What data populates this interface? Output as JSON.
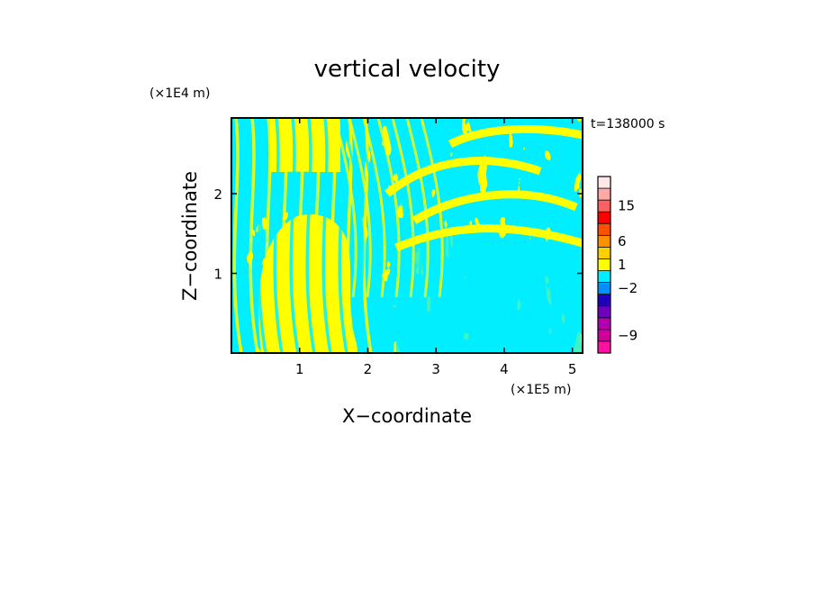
{
  "chart_data": {
    "type": "heatmap",
    "title": "vertical velocity",
    "xlabel": "X−coordinate",
    "ylabel": "Z−coordinate",
    "x_unit": "(×1E5 m)",
    "y_unit": "(×1E4 m)",
    "time_label": "t=138000 s",
    "xlim": [
      0,
      5.15
    ],
    "ylim": [
      0,
      2.95
    ],
    "x_ticks": [
      1,
      2,
      3,
      4,
      5
    ],
    "y_ticks": [
      1,
      2
    ],
    "x_tick_labels": [
      "1",
      "2",
      "3",
      "4",
      "5"
    ],
    "y_tick_labels": [
      "1",
      "2"
    ],
    "colors": {
      "positive": "#ffff00",
      "negative": "#00eeff",
      "frame": "#000000"
    },
    "colorbar": {
      "colors": [
        "#ff10a0",
        "#d0009c",
        "#b000b0",
        "#7000c0",
        "#2000c0",
        "#0090ff",
        "#00eeff",
        "#ffff00",
        "#ffd000",
        "#ff9000",
        "#ff5000",
        "#ff0000",
        "#ff6060",
        "#ffa8a8",
        "#ffe8e8"
      ],
      "tick_labels": [
        "−9",
        "−2",
        "1",
        "6",
        "15"
      ],
      "tick_level_index": [
        1.5,
        5.5,
        7.5,
        9.5,
        12.5
      ]
    }
  }
}
